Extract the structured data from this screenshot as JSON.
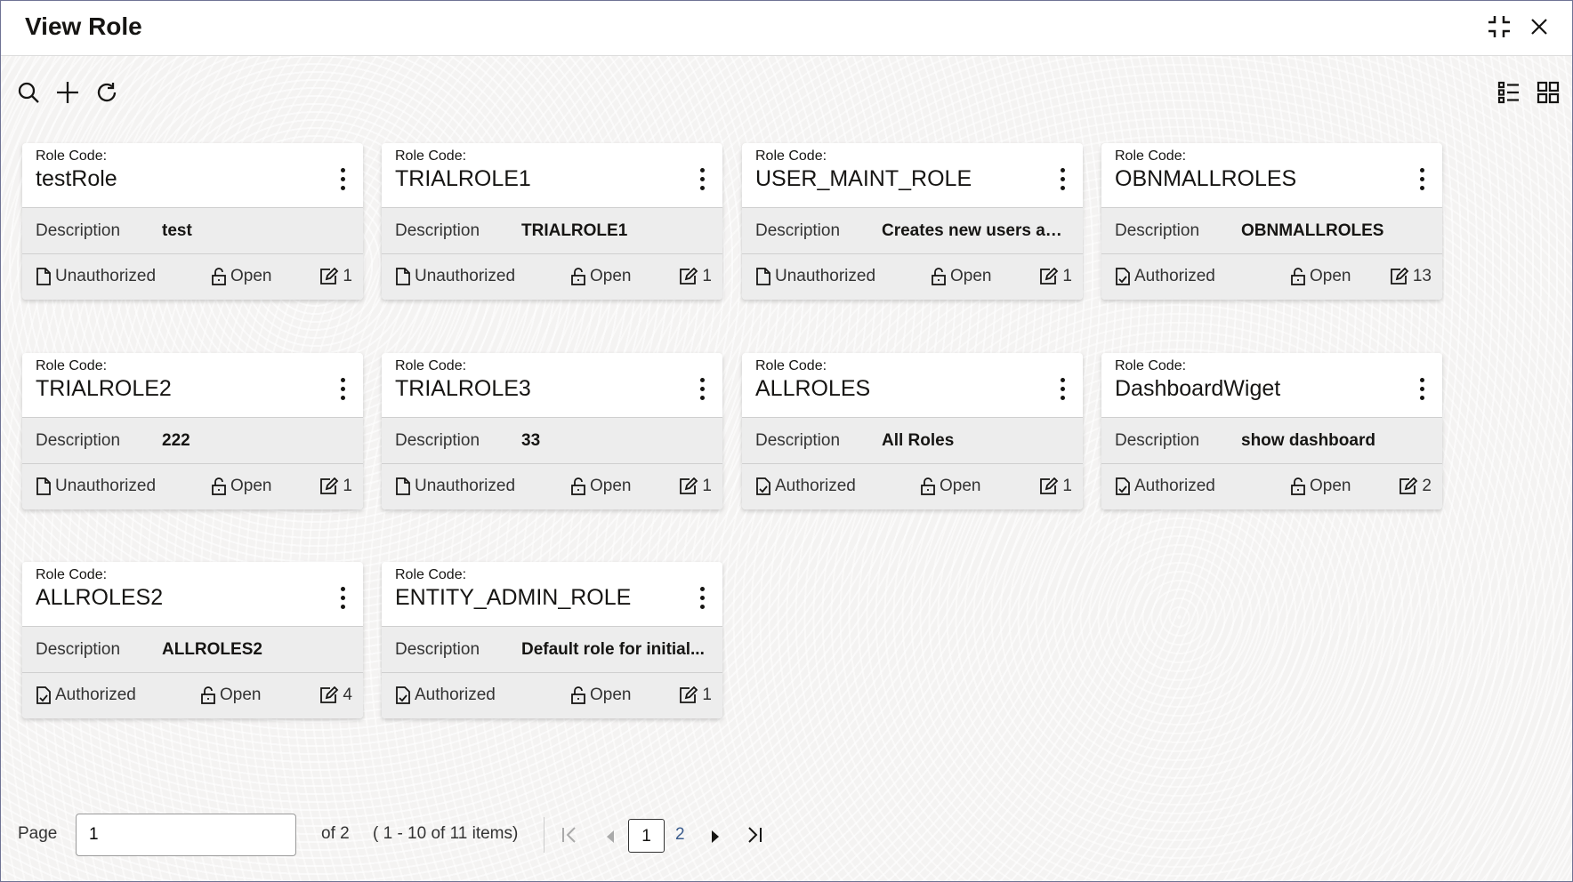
{
  "window": {
    "title": "View Role"
  },
  "labels": {
    "role_code": "Role Code:",
    "description": "Description"
  },
  "roles": [
    {
      "code": "testRole",
      "description": "test",
      "auth": "Unauthorized",
      "status": "Open",
      "mods": "1"
    },
    {
      "code": "TRIALROLE1",
      "description": "TRIALROLE1",
      "auth": "Unauthorized",
      "status": "Open",
      "mods": "1"
    },
    {
      "code": "USER_MAINT_ROLE",
      "description": "Creates new users an...",
      "auth": "Unauthorized",
      "status": "Open",
      "mods": "1"
    },
    {
      "code": "OBNMALLROLES",
      "description": "OBNMALLROLES",
      "auth": "Authorized",
      "status": "Open",
      "mods": "13"
    },
    {
      "code": "TRIALROLE2",
      "description": "222",
      "auth": "Unauthorized",
      "status": "Open",
      "mods": "1"
    },
    {
      "code": "TRIALROLE3",
      "description": "33",
      "auth": "Unauthorized",
      "status": "Open",
      "mods": "1"
    },
    {
      "code": "ALLROLES",
      "description": "All Roles",
      "auth": "Authorized",
      "status": "Open",
      "mods": "1"
    },
    {
      "code": "DashboardWiget",
      "description": "show dashboard",
      "auth": "Authorized",
      "status": "Open",
      "mods": "2"
    },
    {
      "code": "ALLROLES2",
      "description": "ALLROLES2",
      "auth": "Authorized",
      "status": "Open",
      "mods": "4"
    },
    {
      "code": "ENTITY_ADMIN_ROLE",
      "description": "Default role for initial...",
      "auth": "Authorized",
      "status": "Open",
      "mods": "1"
    }
  ],
  "pagination": {
    "page_label": "Page",
    "page_value": "1",
    "of_label": "of 2",
    "summary": "( 1 - 10 of 11 items)",
    "pages": [
      "1",
      "2"
    ],
    "current": "1"
  }
}
